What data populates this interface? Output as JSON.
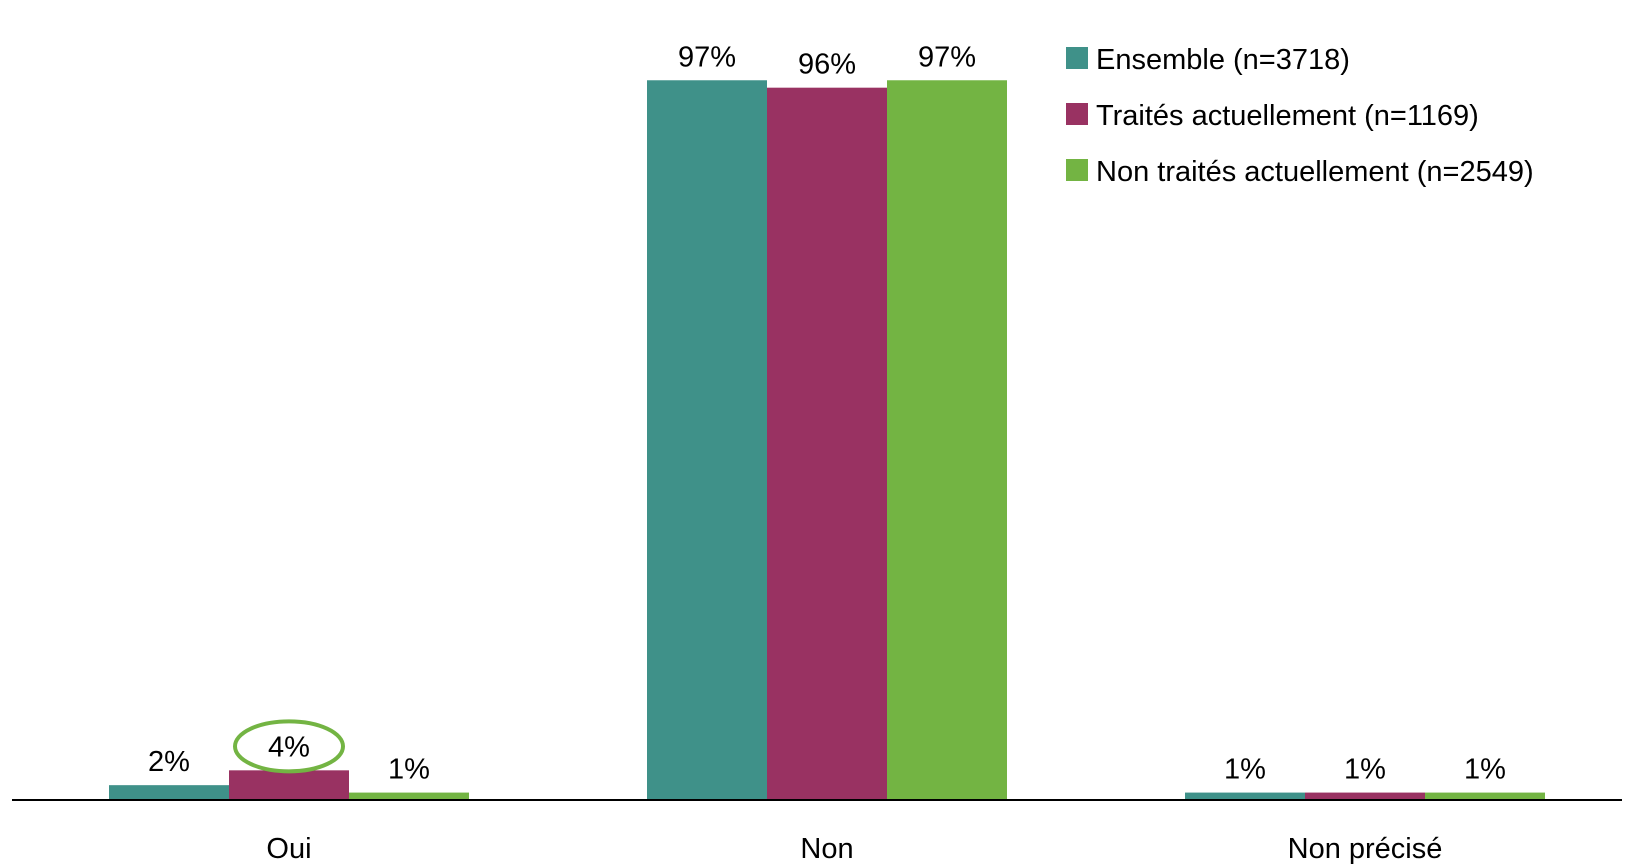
{
  "chart_data": {
    "type": "bar",
    "title": "",
    "xlabel": "",
    "ylabel": "",
    "ylim": [
      0,
      100
    ],
    "grid": false,
    "legend_position": "top-right",
    "categories": [
      "Oui",
      "Non",
      "Non précisé"
    ],
    "series": [
      {
        "name": "Ensemble (n=3718)",
        "color": "#3f9189",
        "values": [
          2,
          97,
          1
        ],
        "labels": [
          "2%",
          "97%",
          "1%"
        ]
      },
      {
        "name": "Traités actuellement (n=1169)",
        "color": "#993262",
        "values": [
          4,
          96,
          1
        ],
        "labels": [
          "4%",
          "96%",
          "1%"
        ]
      },
      {
        "name": "Non traités actuellement (n=2549)",
        "color": "#73b443",
        "values": [
          1,
          97,
          1
        ],
        "labels": [
          "1%",
          "97%",
          "1%"
        ]
      }
    ],
    "highlight": {
      "series": 1,
      "category": 0,
      "shape": "ellipse",
      "color": "#73b443"
    }
  }
}
